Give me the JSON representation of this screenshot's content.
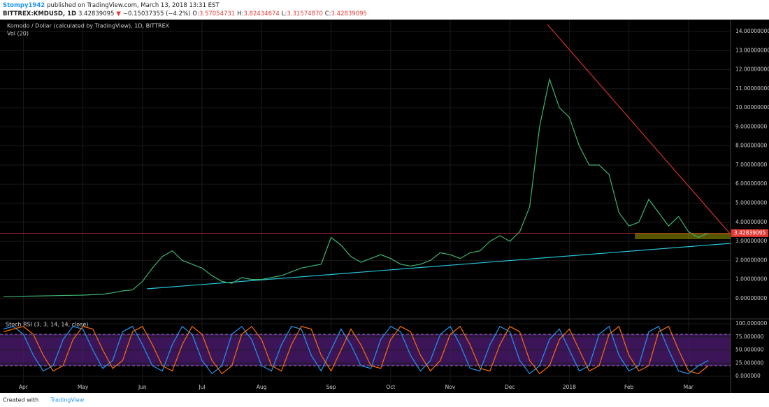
{
  "header": {
    "user": "Stompy1942",
    "published": "published on TradingView.com, March 13, 2018 13:31 EST",
    "symbol": "BITTREX:KMDUSD, 1D",
    "price": "3.42839095",
    "arrow": "▼",
    "change": "−0.15037355 (−4.2%)",
    "o_label": "O:",
    "o": "3.57054731",
    "h_label": "H:",
    "h": "3.82434674",
    "l_label": "L:",
    "l": "3.31574870",
    "c_label": "C:",
    "c": "3.42839095"
  },
  "chart_data": [
    {
      "type": "line",
      "title": "Komodo / Dollar (calculated by TradingView), 1D, BITTREX",
      "subtitle": "Vol (20)",
      "color": "#3cb371",
      "categories": [
        null,
        null,
        "Apr",
        null,
        null,
        null,
        null,
        null,
        "May",
        null,
        null,
        null,
        null,
        null,
        "Jun",
        null,
        null,
        null,
        null,
        null,
        "Jul",
        null,
        null,
        null,
        null,
        null,
        "Aug",
        null,
        null,
        null,
        null,
        null,
        null,
        "Sep",
        null,
        null,
        null,
        null,
        null,
        "Oct",
        null,
        null,
        null,
        null,
        null,
        "Nov",
        null,
        null,
        null,
        null,
        null,
        "Dec",
        null,
        null,
        null,
        null,
        null,
        "2018",
        null,
        null,
        null,
        null,
        null,
        "Feb",
        null,
        null,
        null,
        null,
        null,
        "Mar",
        null,
        null
      ],
      "values": [
        0.1,
        0.1,
        0.12,
        0.13,
        0.14,
        0.15,
        0.16,
        0.17,
        0.18,
        0.2,
        0.22,
        0.3,
        0.4,
        0.45,
        0.9,
        1.6,
        2.2,
        2.5,
        2.0,
        1.8,
        1.6,
        1.2,
        0.9,
        0.8,
        1.1,
        1.0,
        1.0,
        1.1,
        1.2,
        1.4,
        1.6,
        1.7,
        1.8,
        3.2,
        2.8,
        2.2,
        1.9,
        2.1,
        2.3,
        2.1,
        1.8,
        1.7,
        1.8,
        2.0,
        2.4,
        2.3,
        2.1,
        2.4,
        2.5,
        3.0,
        3.3,
        3.0,
        3.5,
        4.8,
        9.0,
        11.5,
        10.0,
        9.5,
        8.0,
        7.0,
        7.0,
        6.5,
        4.5,
        3.8,
        4.0,
        5.2,
        4.5,
        3.8,
        4.3,
        3.5,
        3.2,
        3.43
      ],
      "ylim": [
        -1.03,
        14.55
      ],
      "yticks": [
        {
          "value": 0,
          "label": "0.00000000"
        },
        {
          "value": 1,
          "label": "1.00000000"
        },
        {
          "value": 2,
          "label": "2.00000000"
        },
        {
          "value": 3,
          "label": "3.00000000"
        },
        {
          "value": 4,
          "label": "4.00000000"
        },
        {
          "value": 5,
          "label": "5.00000000"
        },
        {
          "value": 6,
          "label": "6.00000000"
        },
        {
          "value": 7,
          "label": "7.00000000"
        },
        {
          "value": 8,
          "label": "8.00000000"
        },
        {
          "value": 9,
          "label": "9.00000000"
        },
        {
          "value": 10,
          "label": "10.00000000"
        },
        {
          "value": 11,
          "label": "11.00000000"
        },
        {
          "value": 12,
          "label": "12.00000000"
        },
        {
          "value": 13,
          "label": "13.00000000"
        },
        {
          "value": 14,
          "label": "14.00000000"
        }
      ],
      "last_price": 3.42839095,
      "last_color": "#e53935",
      "grid": true
    },
    {
      "type": "line",
      "title": "Stoch RSI (3, 3, 14, 14, close)",
      "series": [
        {
          "color": "#2196f3",
          "values": [
            90,
            95,
            80,
            40,
            10,
            20,
            70,
            95,
            90,
            50,
            15,
            30,
            85,
            95,
            60,
            20,
            10,
            60,
            95,
            80,
            30,
            5,
            20,
            80,
            95,
            70,
            20,
            10,
            60,
            95,
            90,
            40,
            10,
            50,
            90,
            60,
            20,
            15,
            70,
            95,
            85,
            40,
            10,
            30,
            80,
            95,
            60,
            15,
            10,
            60,
            95,
            85,
            30,
            5,
            20,
            70,
            90,
            50,
            10,
            20,
            80,
            95,
            40,
            10,
            20,
            85,
            95,
            50,
            10,
            5,
            20,
            30
          ]
        },
        {
          "color": "#ff6d00",
          "values": [
            85,
            90,
            95,
            80,
            40,
            10,
            20,
            70,
            95,
            90,
            50,
            15,
            30,
            85,
            95,
            60,
            20,
            10,
            60,
            95,
            80,
            30,
            5,
            20,
            80,
            95,
            70,
            20,
            10,
            60,
            95,
            90,
            40,
            10,
            50,
            90,
            60,
            20,
            15,
            70,
            95,
            85,
            40,
            10,
            30,
            80,
            95,
            60,
            15,
            10,
            60,
            95,
            85,
            30,
            5,
            20,
            70,
            90,
            50,
            10,
            20,
            80,
            95,
            40,
            10,
            20,
            85,
            95,
            50,
            10,
            5,
            20
          ]
        }
      ],
      "bands": [
        80,
        20
      ],
      "band_color": "#4a1a6e",
      "ylim": [
        -13.3,
        108
      ],
      "yticks": [
        {
          "value": 0,
          "label": "0.000000"
        },
        {
          "value": 25,
          "label": "25.000000"
        },
        {
          "value": 50,
          "label": "50.000000"
        },
        {
          "value": 75,
          "label": "75.000000"
        },
        {
          "value": 100,
          "label": "100.000000"
        }
      ],
      "grid": true
    }
  ],
  "footer": {
    "created": "Created with",
    "brand": "TradingView"
  }
}
